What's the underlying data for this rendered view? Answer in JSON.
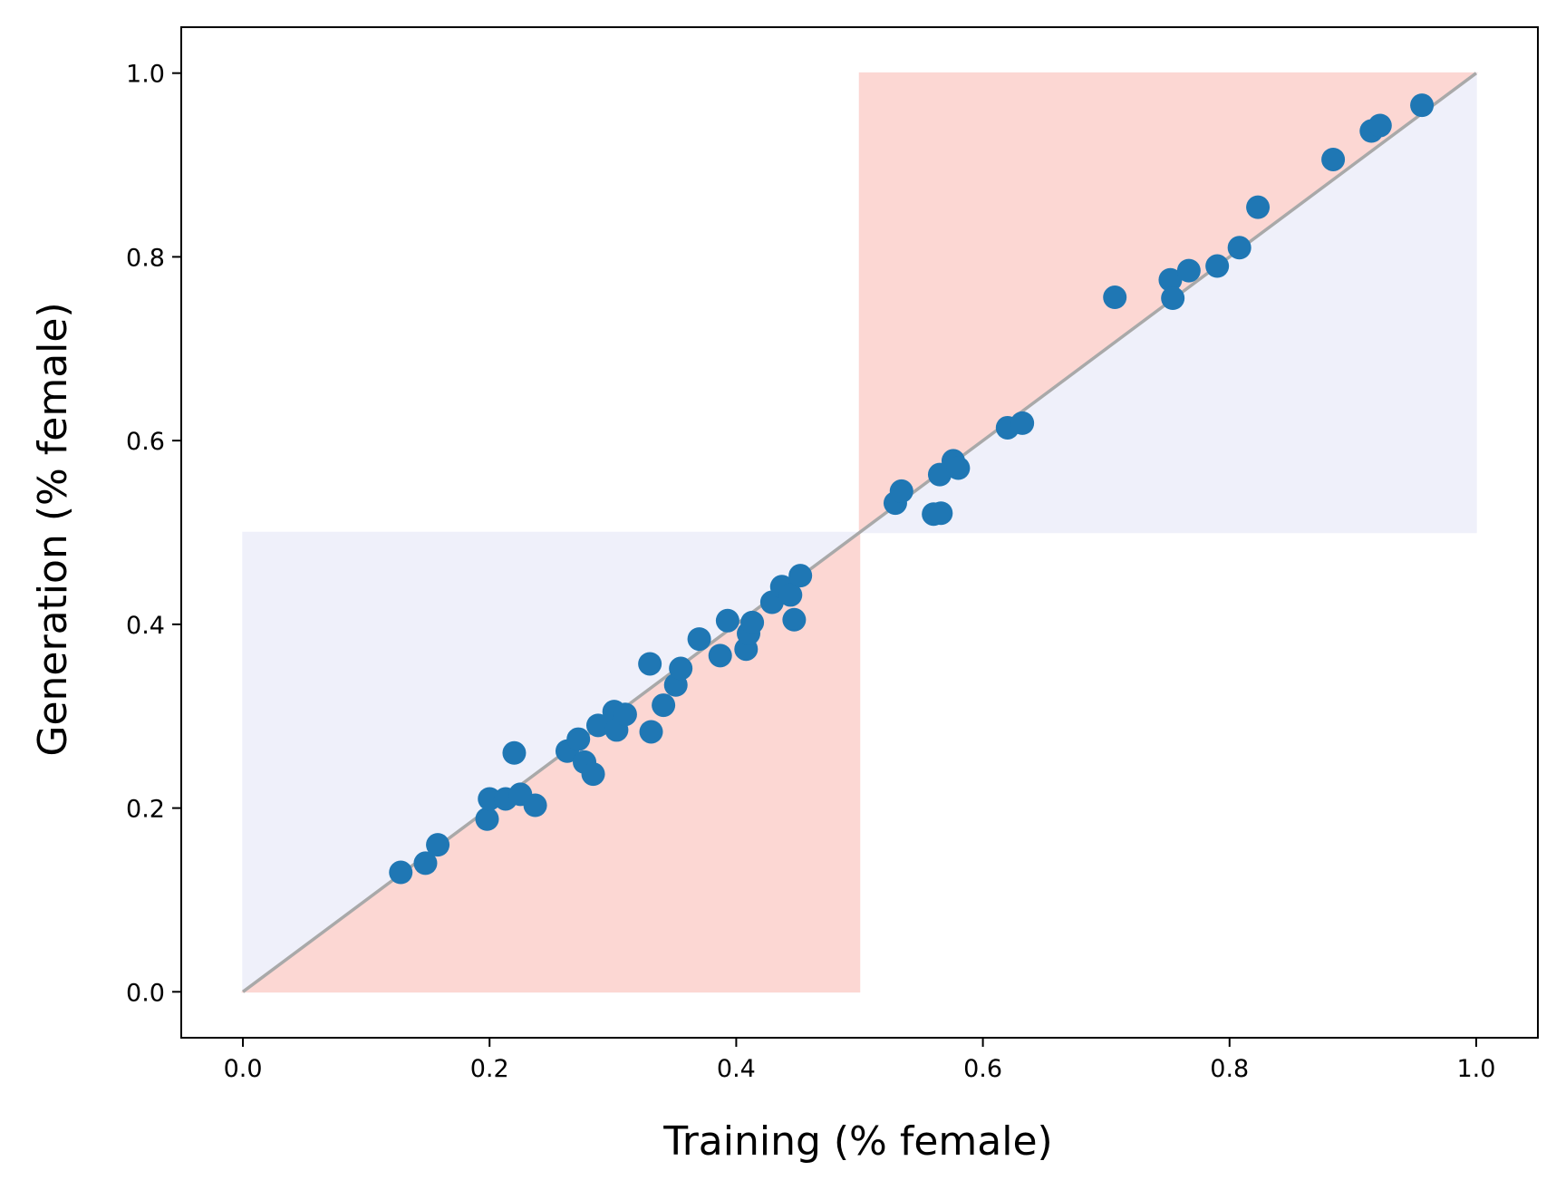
{
  "chart_data": {
    "type": "scatter",
    "title": "",
    "xlabel": "Training (% female)",
    "ylabel": "Generation (% female)",
    "xlim": [
      -0.05,
      1.05
    ],
    "ylim": [
      -0.05,
      1.05
    ],
    "xticks": [
      0.0,
      0.2,
      0.4,
      0.6,
      0.8,
      1.0
    ],
    "yticks": [
      0.0,
      0.2,
      0.4,
      0.6,
      0.8,
      1.0
    ],
    "xtick_labels": [
      "0.0",
      "0.2",
      "0.4",
      "0.6",
      "0.8",
      "1.0"
    ],
    "ytick_labels": [
      "0.0",
      "0.2",
      "0.4",
      "0.6",
      "0.8",
      "1.0"
    ],
    "grid": false,
    "colors": {
      "points": "#1f77b4",
      "reference_line": "#a9a9a9",
      "region_red": "#fcd7d3",
      "region_blue": "#eff0fa"
    },
    "reference_line": {
      "x": [
        0.0,
        1.0
      ],
      "y": [
        0.0,
        1.0
      ]
    },
    "regions": [
      {
        "name": "blue-lower-left",
        "polygon": [
          [
            0,
            0
          ],
          [
            0,
            0.5
          ],
          [
            0.5,
            0.5
          ]
        ],
        "color": "#eff0fa"
      },
      {
        "name": "red-lower-left",
        "polygon": [
          [
            0,
            0
          ],
          [
            0.5,
            0.5
          ],
          [
            0.5,
            0
          ]
        ],
        "color": "#fcd7d3"
      },
      {
        "name": "red-upper-right",
        "polygon": [
          [
            0.5,
            0.5
          ],
          [
            0.5,
            1.0
          ],
          [
            1.0,
            1.0
          ]
        ],
        "color": "#fcd7d3"
      },
      {
        "name": "blue-upper-right",
        "polygon": [
          [
            0.5,
            0.5
          ],
          [
            1.0,
            1.0
          ],
          [
            1.0,
            0.5
          ]
        ],
        "color": "#eff0fa"
      }
    ],
    "points": [
      {
        "x": 0.128,
        "y": 0.13
      },
      {
        "x": 0.148,
        "y": 0.14
      },
      {
        "x": 0.158,
        "y": 0.16
      },
      {
        "x": 0.198,
        "y": 0.188
      },
      {
        "x": 0.2,
        "y": 0.21
      },
      {
        "x": 0.213,
        "y": 0.21
      },
      {
        "x": 0.22,
        "y": 0.26
      },
      {
        "x": 0.225,
        "y": 0.215
      },
      {
        "x": 0.237,
        "y": 0.203
      },
      {
        "x": 0.263,
        "y": 0.262
      },
      {
        "x": 0.272,
        "y": 0.275
      },
      {
        "x": 0.277,
        "y": 0.25
      },
      {
        "x": 0.284,
        "y": 0.237
      },
      {
        "x": 0.288,
        "y": 0.29
      },
      {
        "x": 0.301,
        "y": 0.305
      },
      {
        "x": 0.303,
        "y": 0.285
      },
      {
        "x": 0.31,
        "y": 0.302
      },
      {
        "x": 0.33,
        "y": 0.357
      },
      {
        "x": 0.331,
        "y": 0.283
      },
      {
        "x": 0.341,
        "y": 0.312
      },
      {
        "x": 0.351,
        "y": 0.334
      },
      {
        "x": 0.355,
        "y": 0.352
      },
      {
        "x": 0.37,
        "y": 0.384
      },
      {
        "x": 0.387,
        "y": 0.366
      },
      {
        "x": 0.393,
        "y": 0.404
      },
      {
        "x": 0.408,
        "y": 0.373
      },
      {
        "x": 0.41,
        "y": 0.39
      },
      {
        "x": 0.413,
        "y": 0.402
      },
      {
        "x": 0.429,
        "y": 0.424
      },
      {
        "x": 0.437,
        "y": 0.441
      },
      {
        "x": 0.444,
        "y": 0.432
      },
      {
        "x": 0.447,
        "y": 0.405
      },
      {
        "x": 0.452,
        "y": 0.453
      },
      {
        "x": 0.529,
        "y": 0.532
      },
      {
        "x": 0.534,
        "y": 0.545
      },
      {
        "x": 0.56,
        "y": 0.52
      },
      {
        "x": 0.566,
        "y": 0.521
      },
      {
        "x": 0.565,
        "y": 0.563
      },
      {
        "x": 0.576,
        "y": 0.578
      },
      {
        "x": 0.58,
        "y": 0.57
      },
      {
        "x": 0.62,
        "y": 0.614
      },
      {
        "x": 0.632,
        "y": 0.619
      },
      {
        "x": 0.707,
        "y": 0.756
      },
      {
        "x": 0.752,
        "y": 0.775
      },
      {
        "x": 0.754,
        "y": 0.755
      },
      {
        "x": 0.767,
        "y": 0.785
      },
      {
        "x": 0.79,
        "y": 0.79
      },
      {
        "x": 0.808,
        "y": 0.81
      },
      {
        "x": 0.823,
        "y": 0.854
      },
      {
        "x": 0.884,
        "y": 0.906
      },
      {
        "x": 0.915,
        "y": 0.937
      },
      {
        "x": 0.922,
        "y": 0.943
      },
      {
        "x": 0.956,
        "y": 0.965
      }
    ]
  }
}
